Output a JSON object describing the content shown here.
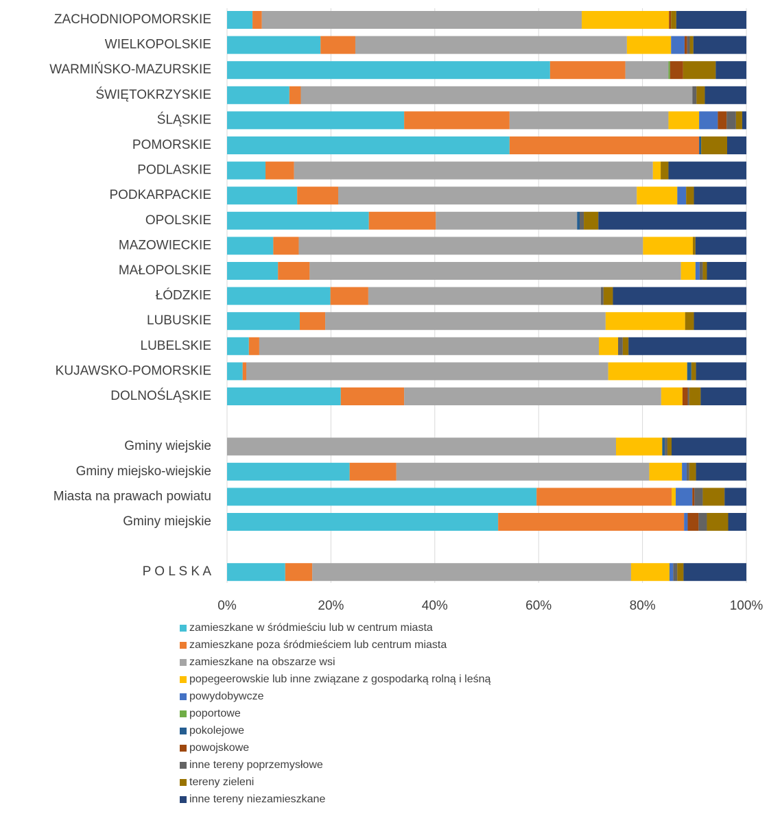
{
  "chart_data": {
    "type": "stacked-barh",
    "categories": [
      "ZACHODNIOPOMORSKIE",
      "WIELKOPOLSKIE",
      "WARMIŃSKO-MAZURSKIE",
      "ŚWIĘTOKRZYSKIE",
      "ŚLĄSKIE",
      "POMORSKIE",
      "PODLASKIE",
      "PODKARPACKIE",
      "OPOLSKIE",
      "MAZOWIECKIE",
      "MAŁOPOLSKIE",
      "ŁÓDZKIE",
      "LUBUSKIE",
      "LUBELSKIE",
      "KUJAWSKO-POMORSKIE",
      "DOLNOŚLĄSKIE",
      null,
      "Gminy wiejskie",
      "Gminy miejsko-wiejskie",
      "Miasta na prawach powiatu",
      "Gminy miejskie",
      null,
      "P O L S K A"
    ],
    "series": [
      {
        "name": "zamieszkane w śródmieściu lub w centrum miasta",
        "color": "#44c0d6",
        "values": [
          4.9,
          18.0,
          62.2,
          12.0,
          34.1,
          54.4,
          7.4,
          13.5,
          27.3,
          8.9,
          9.8,
          19.9,
          14.0,
          4.2,
          3.0,
          21.9,
          null,
          0,
          23.6,
          59.6,
          52.2,
          null,
          11.2
        ]
      },
      {
        "name": "zamieszkane poza śródmieściem lub centrum miasta",
        "color": "#ed7d31",
        "values": [
          1.8,
          6.7,
          14.5,
          2.2,
          20.3,
          36.5,
          5.5,
          7.9,
          12.9,
          4.9,
          6.1,
          7.3,
          4.9,
          2.0,
          0.7,
          12.2,
          null,
          0,
          9.0,
          26.0,
          35.8,
          null,
          5.2
        ]
      },
      {
        "name": "zamieszkane na obszarze wsi",
        "color": "#a5a5a5",
        "values": [
          61.6,
          52.3,
          8.3,
          75.4,
          30.6,
          0,
          69.1,
          57.5,
          27.2,
          66.3,
          71.5,
          44.8,
          54.0,
          65.4,
          69.7,
          49.5,
          null,
          74.9,
          48.7,
          0,
          0,
          null,
          61.4
        ]
      },
      {
        "name": "popegeerowskie lub inne związane z gospodarką rolną i leśną",
        "color": "#ffc000",
        "values": [
          16.8,
          8.5,
          0,
          0,
          5.9,
          0,
          1.5,
          7.8,
          0,
          9.6,
          2.8,
          0,
          15.3,
          3.7,
          15.2,
          4.1,
          null,
          8.9,
          6.3,
          0.8,
          0,
          null,
          7.4
        ]
      },
      {
        "name": "powydobywcze",
        "color": "#4472c4",
        "values": [
          0,
          2.6,
          0,
          0,
          3.6,
          0,
          0,
          1.7,
          0,
          0,
          0.8,
          0,
          0,
          0,
          0,
          0,
          null,
          0,
          0.9,
          3.2,
          0.7,
          null,
          0.7
        ]
      },
      {
        "name": "poportowe",
        "color": "#70ad47",
        "values": [
          0,
          0,
          0.3,
          0,
          0,
          0,
          0,
          0,
          0,
          0,
          0,
          0,
          0,
          0,
          0,
          0,
          null,
          0,
          0,
          0,
          0,
          null,
          0
        ]
      },
      {
        "name": "pokolejowe",
        "color": "#255e91",
        "values": [
          0,
          0,
          0,
          0,
          0,
          0.4,
          0,
          0,
          0.5,
          0,
          0,
          0,
          0,
          0,
          0.8,
          0,
          null,
          0.5,
          0,
          0,
          0,
          null,
          0
        ]
      },
      {
        "name": "powojskowe",
        "color": "#9e480e",
        "values": [
          0.4,
          0.5,
          2.5,
          0,
          1.7,
          0,
          0,
          0,
          0,
          0,
          0,
          0,
          0,
          0,
          0,
          1.0,
          null,
          0,
          0,
          0.4,
          2.1,
          null,
          0
        ]
      },
      {
        "name": "inne tereny poprzemysłowe",
        "color": "#636363",
        "values": [
          0,
          0.5,
          0,
          0.8,
          1.8,
          0,
          0,
          0,
          0.8,
          0,
          0.6,
          0.5,
          0,
          0.9,
          0,
          0.3,
          null,
          0.5,
          0.5,
          1.6,
          1.6,
          null,
          0.8
        ]
      },
      {
        "name": "tereny zieleni",
        "color": "#997300",
        "values": [
          1.0,
          0.7,
          6.3,
          1.6,
          1.2,
          5.0,
          1.5,
          1.5,
          2.8,
          0.5,
          0.8,
          1.8,
          1.7,
          1.1,
          0.9,
          2.2,
          null,
          0.8,
          1.3,
          4.2,
          4.1,
          null,
          1.2
        ]
      },
      {
        "name": "inne tereny niezamieszkane",
        "color": "#264478",
        "values": [
          13.5,
          10.2,
          5.9,
          8.0,
          0.8,
          3.7,
          15.0,
          10.1,
          28.5,
          9.8,
          7.6,
          25.7,
          10.1,
          22.7,
          9.7,
          8.8,
          null,
          14.4,
          9.7,
          4.2,
          3.5,
          null,
          12.1
        ]
      }
    ],
    "xlim": [
      0,
      100
    ],
    "xticks": [
      {
        "value": 0,
        "label": "0%"
      },
      {
        "value": 20,
        "label": "20%"
      },
      {
        "value": 40,
        "label": "40%"
      },
      {
        "value": 60,
        "label": "60%"
      },
      {
        "value": 80,
        "label": "80%"
      },
      {
        "value": 100,
        "label": "100%"
      }
    ],
    "grid": true,
    "legend": "bottom"
  }
}
